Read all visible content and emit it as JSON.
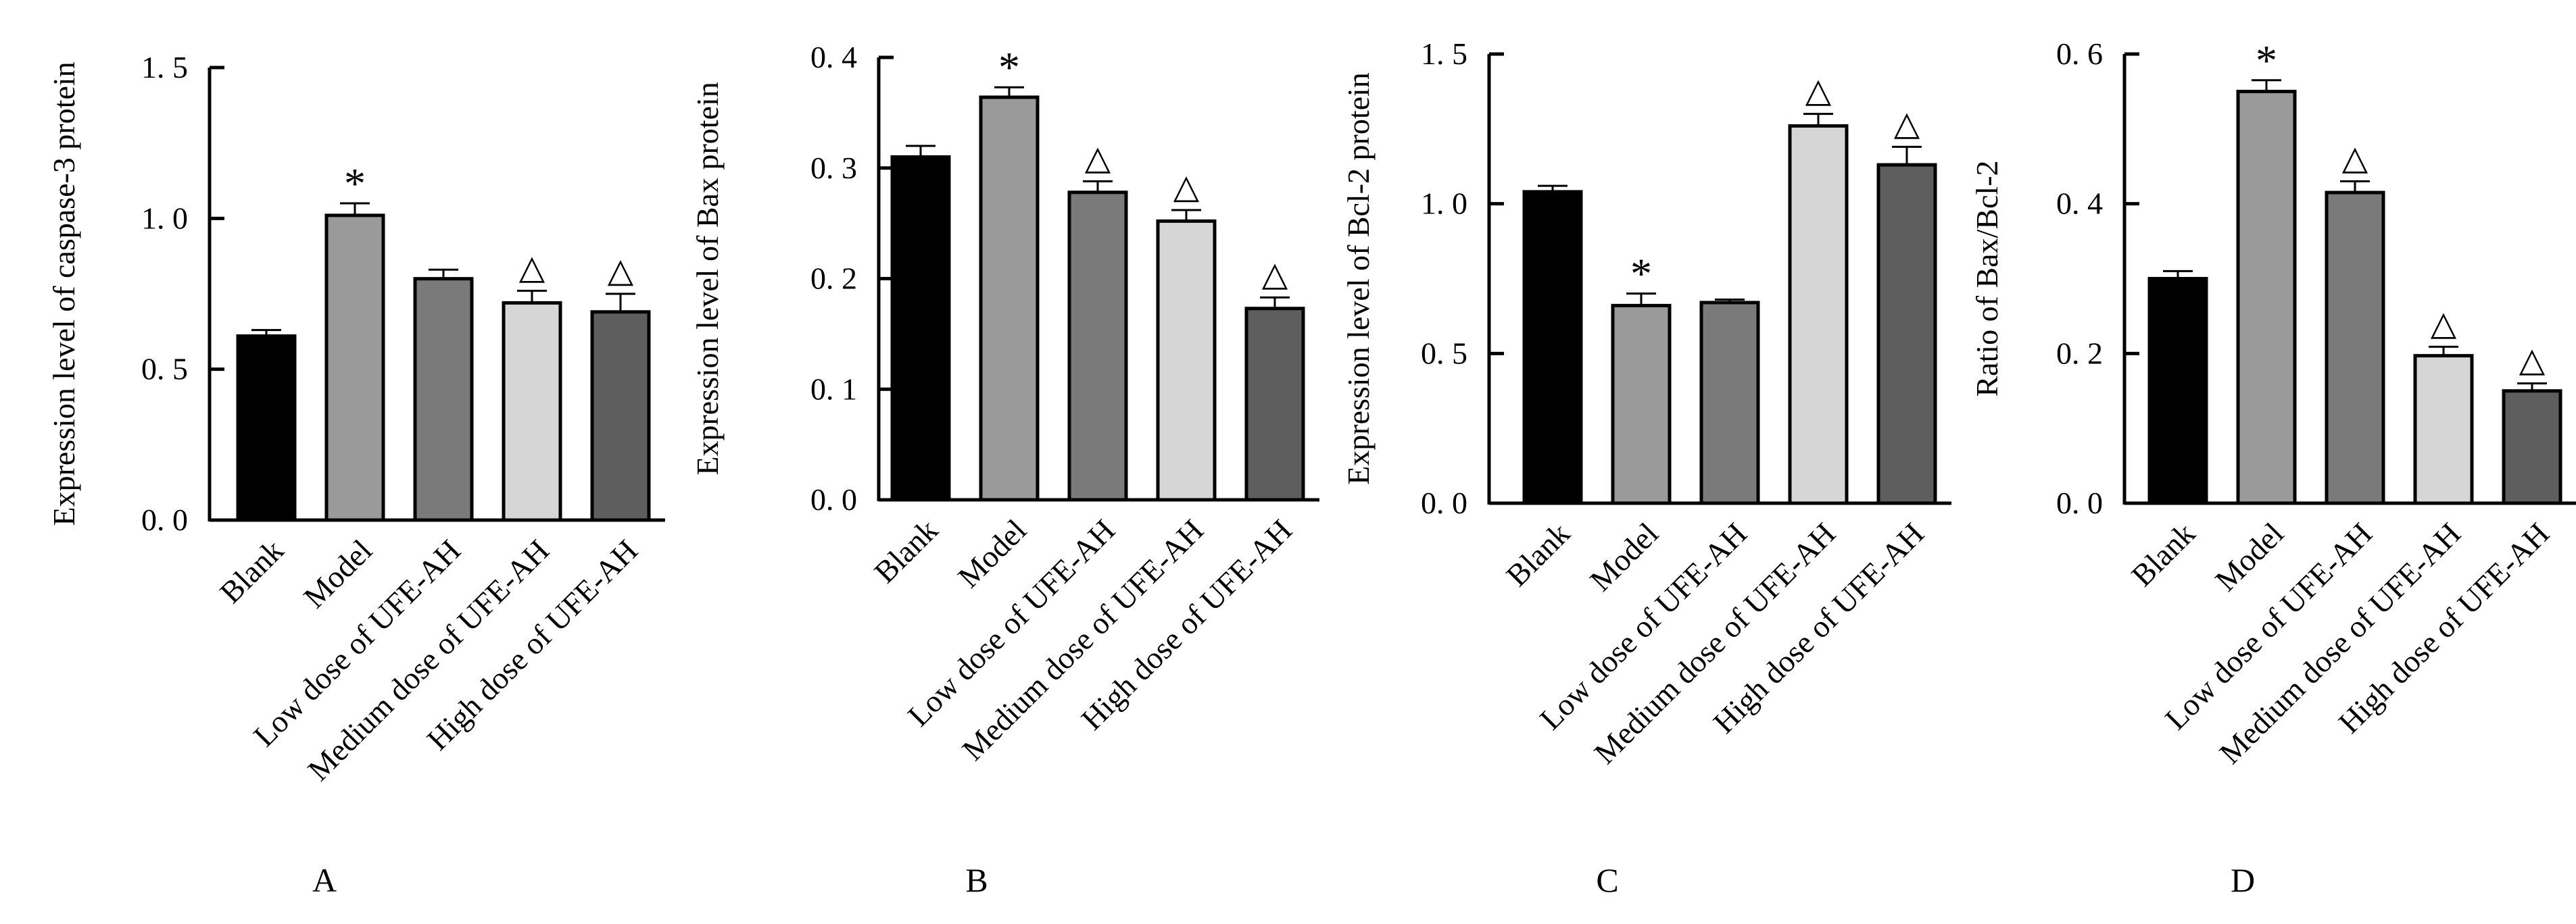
{
  "chart_data": [
    {
      "type": "bar",
      "panel_label": "A",
      "ylabel": "Expression level of caspase-3 protein",
      "categories": [
        "Blank",
        "Model",
        "Low dose of UFE-AH",
        "Medium dose of UFE-AH",
        "High dose of UFE-AH"
      ],
      "values": [
        0.61,
        1.01,
        0.8,
        0.72,
        0.69
      ],
      "errors": [
        0.02,
        0.04,
        0.03,
        0.04,
        0.06
      ],
      "markers": [
        "",
        "*",
        "",
        "△",
        "△"
      ],
      "ylim": [
        0,
        1.5
      ],
      "yticks": [
        "0. 0",
        "0. 5",
        "1. 0",
        "1. 5"
      ],
      "bar_colors": [
        "#000000",
        "#9a9a9a",
        "#7a7a7a",
        "#d6d6d6",
        "#5e5e5e"
      ],
      "grid": false
    },
    {
      "type": "bar",
      "panel_label": "B",
      "ylabel": "Expression level of Bax protein",
      "categories": [
        "Blank",
        "Model",
        "Low dose of UFE-AH",
        "Medium dose of UFE-AH",
        "High dose of UFE-AH"
      ],
      "values": [
        0.31,
        0.364,
        0.278,
        0.252,
        0.173
      ],
      "errors": [
        0.01,
        0.009,
        0.01,
        0.01,
        0.01
      ],
      "markers": [
        "",
        "*",
        "△",
        "△",
        "△"
      ],
      "ylim": [
        0,
        0.4
      ],
      "yticks": [
        "0. 0",
        "0. 1",
        "0. 2",
        "0. 3",
        "0. 4"
      ],
      "bar_colors": [
        "#000000",
        "#9a9a9a",
        "#7a7a7a",
        "#d6d6d6",
        "#5e5e5e"
      ],
      "grid": false
    },
    {
      "type": "bar",
      "panel_label": "C",
      "ylabel": "Expression level of Bcl-2 protein",
      "categories": [
        "Blank",
        "Model",
        "Low dose of UFE-AH",
        "Medium dose of UFE-AH",
        "High dose of UFE-AH"
      ],
      "values": [
        1.04,
        0.66,
        0.67,
        1.26,
        1.13
      ],
      "errors": [
        0.02,
        0.04,
        0.01,
        0.04,
        0.06
      ],
      "markers": [
        "",
        "*",
        "",
        "△",
        "△"
      ],
      "ylim": [
        0,
        1.5
      ],
      "yticks": [
        "0. 0",
        "0. 5",
        "1. 0",
        "1. 5"
      ],
      "bar_colors": [
        "#000000",
        "#9a9a9a",
        "#7a7a7a",
        "#d6d6d6",
        "#5e5e5e"
      ],
      "grid": false
    },
    {
      "type": "bar",
      "panel_label": "D",
      "ylabel": "Ratio of Bax/Bcl-2",
      "categories": [
        "Blank",
        "Model",
        "Low dose of UFE-AH",
        "Medium dose of UFE-AH",
        "High dose of UFE-AH"
      ],
      "values": [
        0.3,
        0.55,
        0.415,
        0.197,
        0.15
      ],
      "errors": [
        0.01,
        0.015,
        0.015,
        0.012,
        0.01
      ],
      "markers": [
        "",
        "*",
        "△",
        "△",
        "△"
      ],
      "ylim": [
        0,
        0.6
      ],
      "yticks": [
        "0. 0",
        "0. 2",
        "0. 4",
        "0. 6"
      ],
      "bar_colors": [
        "#000000",
        "#9a9a9a",
        "#7a7a7a",
        "#d6d6d6",
        "#5e5e5e"
      ],
      "grid": false
    }
  ]
}
